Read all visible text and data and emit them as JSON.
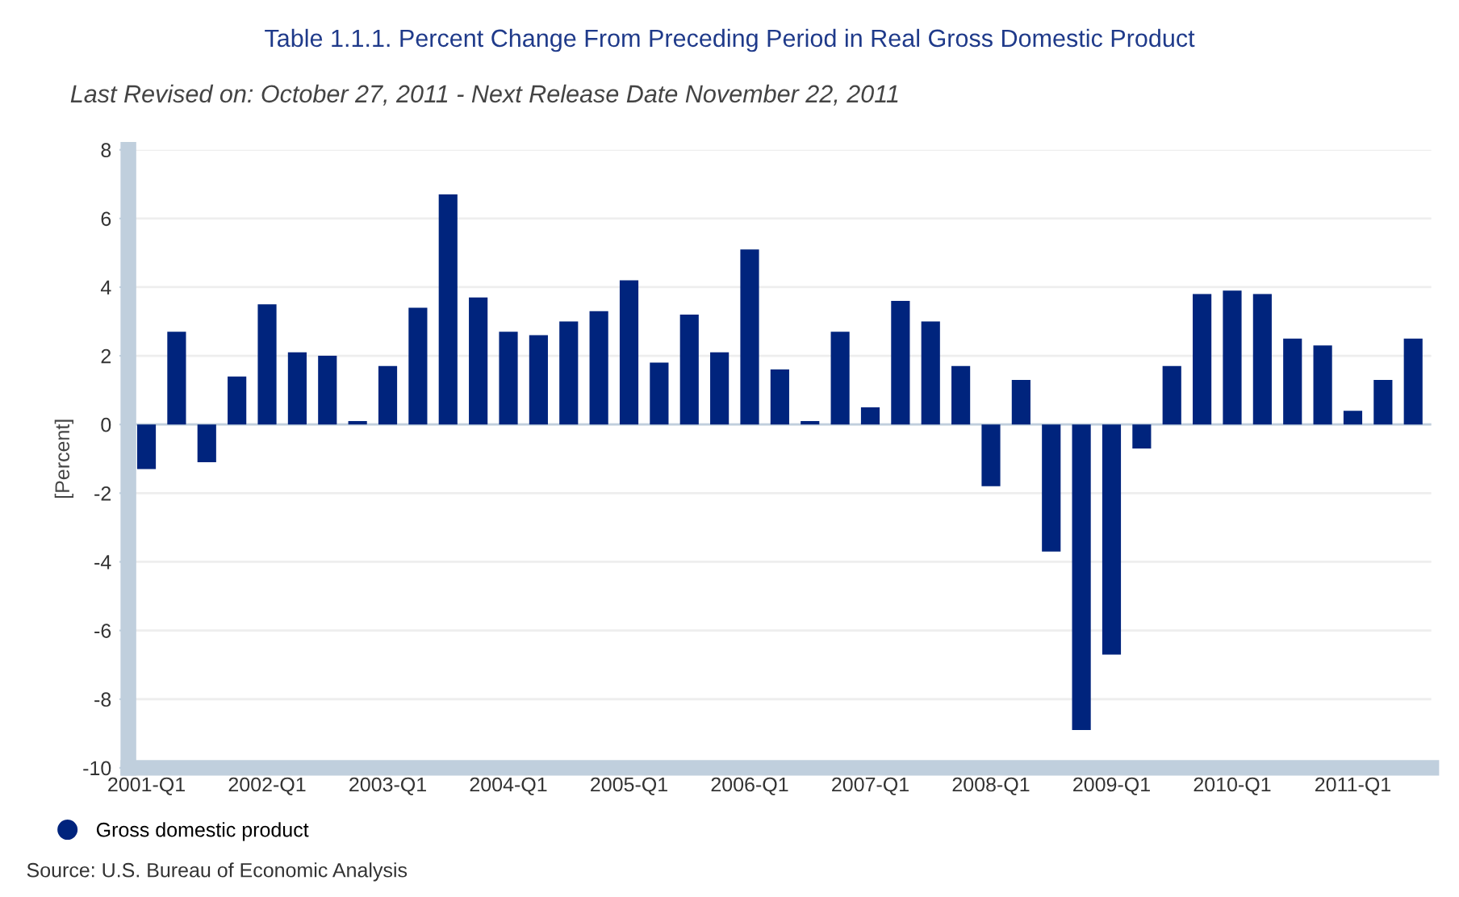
{
  "chart_data": {
    "type": "bar",
    "title": "Table 1.1.1. Percent Change From Preceding Period in Real Gross Domestic Product",
    "subtitle": "Last Revised on: October 27, 2011 - Next Release Date November 22, 2011",
    "ylabel": "[Percent]",
    "categories": [
      "2001-Q1",
      null,
      null,
      null,
      "2002-Q1",
      null,
      null,
      null,
      "2003-Q1",
      null,
      null,
      null,
      "2004-Q1",
      null,
      null,
      null,
      "2005-Q1",
      null,
      null,
      null,
      "2006-Q1",
      null,
      null,
      null,
      "2007-Q1",
      null,
      null,
      null,
      "2008-Q1",
      null,
      null,
      null,
      "2009-Q1",
      null,
      null,
      null,
      "2010-Q1",
      null,
      null,
      null,
      "2011-Q1",
      null,
      null
    ],
    "series": [
      {
        "name": "Gross domestic product",
        "color": "#00247d",
        "values": [
          -1.3,
          2.7,
          -1.1,
          1.4,
          3.5,
          2.1,
          2.0,
          0.1,
          1.7,
          3.4,
          6.7,
          3.7,
          2.7,
          2.6,
          3.0,
          3.3,
          4.2,
          1.8,
          3.2,
          2.1,
          5.1,
          1.6,
          0.1,
          2.7,
          0.5,
          3.6,
          3.0,
          1.7,
          -1.8,
          1.3,
          -3.7,
          -8.9,
          -6.7,
          -0.7,
          1.7,
          3.8,
          3.9,
          3.8,
          2.5,
          2.3,
          0.4,
          1.3,
          2.5
        ]
      }
    ],
    "ylim": [
      -10,
      8
    ],
    "yticks": [
      -10,
      -8,
      -6,
      -4,
      -2,
      0,
      2,
      4,
      6,
      8
    ],
    "grid": "y",
    "legend": "bottom left",
    "annotations": [
      "Source: U.S. Bureau of Economic Analysis"
    ]
  }
}
